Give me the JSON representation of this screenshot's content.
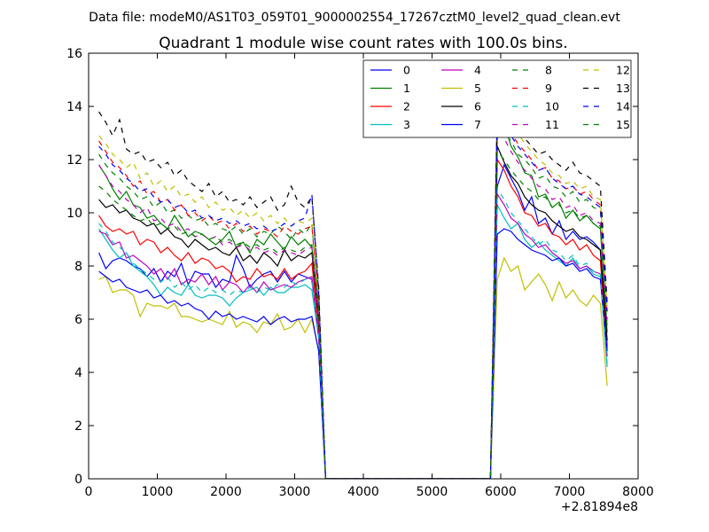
{
  "figure": {
    "suptitle": "Data file: modeM0/AS1T03_059T01_9000002554_17267cztM0_level2_quad_clean.evt"
  },
  "chart_data": {
    "type": "line",
    "title": "Quadrant 1 module wise count rates with 100.0s bins.",
    "xlabel": "",
    "ylabel": "",
    "x_offset_label": "+2.81894e8",
    "xlim": [
      0,
      8000
    ],
    "ylim": [
      0,
      16
    ],
    "xticks": [
      0,
      1000,
      2000,
      3000,
      4000,
      5000,
      6000,
      7000,
      8000
    ],
    "yticks": [
      0,
      2,
      4,
      6,
      8,
      10,
      12,
      14,
      16
    ],
    "legend_position": "top-right",
    "legend_columns": 4,
    "gap_x_points": [
      3450,
      3550,
      3650,
      3750,
      3850,
      3950,
      4050,
      4150,
      4250,
      4350,
      4450,
      4550,
      4650,
      4750,
      4850,
      4950,
      5050,
      5150,
      5250,
      5350,
      5450,
      5550,
      5650,
      5750,
      5850
    ],
    "gap_value": 0,
    "seg1_x": [
      150,
      250,
      350,
      450,
      550,
      650,
      750,
      850,
      950,
      1050,
      1150,
      1250,
      1350,
      1450,
      1550,
      1650,
      1750,
      1850,
      1950,
      2050,
      2150,
      2250,
      2350,
      2450,
      2550,
      2650,
      2750,
      2850,
      2950,
      3050,
      3150,
      3250,
      3350
    ],
    "seg2_x": [
      5950,
      6050,
      6150,
      6250,
      6350,
      6450,
      6550,
      6650,
      6750,
      6850,
      6950,
      7050,
      7150,
      7250,
      7350,
      7450,
      7550
    ],
    "series": [
      {
        "name": "0",
        "color": "#0000ff",
        "dash": "solid",
        "seg1": [
          8.5,
          7.9,
          8.2,
          8.3,
          8.2,
          8.0,
          7.9,
          7.6,
          7.9,
          7.4,
          7.8,
          7.6,
          8.1,
          7.3,
          7.8,
          7.7,
          7.7,
          7.2,
          7.5,
          7.4,
          8.4,
          7.9,
          7.2,
          7.5,
          7.7,
          7.8,
          7.4,
          7.8,
          7.4,
          7.7,
          7.6,
          7.5,
          5.4
        ],
        "seg2": [
          11.0,
          11.8,
          11.3,
          10.8,
          10.1,
          10.6,
          9.6,
          9.8,
          9.2,
          9.7,
          9.0,
          9.3,
          9.0,
          9.1,
          8.9,
          8.6,
          5.0
        ]
      },
      {
        "name": "1",
        "color": "#008000",
        "dash": "solid",
        "seg1": [
          11.8,
          11.4,
          10.9,
          10.5,
          10.8,
          10.3,
          10.2,
          9.8,
          9.9,
          9.6,
          9.4,
          9.9,
          9.5,
          9.1,
          9.3,
          9.2,
          9.0,
          8.8,
          9.0,
          9.3,
          8.7,
          8.9,
          8.5,
          9.0,
          8.8,
          9.2,
          8.9,
          8.6,
          9.1,
          8.8,
          9.0,
          8.7,
          6.2
        ],
        "seg2": [
          12.8,
          13.4,
          12.5,
          12.1,
          11.5,
          11.4,
          10.6,
          10.7,
          10.2,
          10.4,
          9.8,
          10.1,
          9.7,
          9.9,
          9.6,
          9.4,
          5.5
        ]
      },
      {
        "name": "2",
        "color": "#ff0000",
        "dash": "solid",
        "seg1": [
          9.9,
          9.5,
          9.3,
          9.4,
          9.2,
          9.3,
          8.8,
          9.0,
          8.9,
          8.5,
          8.7,
          8.4,
          8.2,
          8.5,
          8.1,
          8.3,
          8.2,
          7.9,
          8.0,
          7.8,
          7.4,
          7.6,
          7.5,
          7.9,
          7.6,
          7.7,
          7.5,
          7.9,
          7.5,
          7.7,
          7.8,
          8.1,
          5.6
        ],
        "seg2": [
          12.0,
          11.6,
          11.0,
          10.6,
          10.0,
          9.9,
          9.5,
          9.6,
          9.2,
          9.1,
          8.8,
          9.0,
          8.6,
          8.8,
          8.4,
          8.2,
          4.9
        ]
      },
      {
        "name": "3",
        "color": "#00bfbf",
        "dash": "solid",
        "seg1": [
          9.4,
          9.0,
          8.6,
          8.3,
          8.5,
          8.0,
          7.8,
          7.6,
          7.3,
          6.9,
          7.2,
          7.0,
          6.9,
          7.3,
          6.9,
          6.8,
          6.9,
          6.9,
          6.8,
          6.5,
          6.8,
          7.0,
          7.1,
          7.2,
          6.9,
          7.2,
          7.0,
          7.0,
          7.2,
          7.2,
          7.3,
          7.1,
          5.3
        ],
        "seg2": [
          10.3,
          9.8,
          9.4,
          9.6,
          9.0,
          8.7,
          8.9,
          8.6,
          8.4,
          8.2,
          8.0,
          8.3,
          7.9,
          8.0,
          7.7,
          7.6,
          4.2
        ]
      },
      {
        "name": "4",
        "color": "#bf00bf",
        "dash": "solid",
        "seg1": [
          9.3,
          9.2,
          8.8,
          8.9,
          8.3,
          8.4,
          8.2,
          8.0,
          7.7,
          7.9,
          7.5,
          7.9,
          7.3,
          7.5,
          7.4,
          7.7,
          7.3,
          7.6,
          7.1,
          7.4,
          7.3,
          7.0,
          7.3,
          7.0,
          7.4,
          7.1,
          7.2,
          7.3,
          7.2,
          7.4,
          7.5,
          7.6,
          5.3
        ],
        "seg2": [
          10.7,
          10.3,
          9.8,
          9.6,
          9.2,
          9.0,
          8.7,
          8.8,
          8.5,
          8.3,
          8.1,
          8.2,
          7.9,
          8.0,
          7.8,
          7.7,
          4.6
        ]
      },
      {
        "name": "5",
        "color": "#bfbf00",
        "dash": "solid",
        "seg1": [
          7.5,
          7.6,
          7.0,
          7.1,
          7.1,
          6.9,
          6.1,
          6.6,
          6.5,
          6.5,
          6.4,
          6.6,
          6.1,
          6.1,
          6.0,
          5.9,
          6.0,
          5.9,
          5.8,
          6.3,
          5.7,
          5.9,
          5.8,
          5.5,
          5.9,
          5.8,
          6.2,
          5.6,
          5.7,
          6.0,
          5.5,
          6.0,
          4.8
        ],
        "seg2": [
          7.5,
          8.3,
          7.8,
          8.0,
          7.1,
          7.4,
          7.7,
          7.3,
          6.7,
          7.4,
          6.8,
          7.1,
          6.7,
          6.5,
          6.9,
          6.6,
          3.5
        ]
      },
      {
        "name": "6",
        "color": "#000000",
        "dash": "solid",
        "seg1": [
          10.5,
          10.2,
          10.3,
          10.0,
          10.1,
          9.8,
          9.7,
          9.5,
          9.6,
          9.2,
          9.4,
          9.1,
          9.0,
          8.7,
          9.0,
          8.8,
          8.6,
          8.7,
          8.5,
          8.4,
          8.7,
          8.2,
          8.4,
          8.1,
          8.5,
          8.3,
          8.0,
          8.6,
          8.2,
          8.4,
          8.3,
          8.5,
          6.0
        ],
        "seg2": [
          12.5,
          11.9,
          11.4,
          11.1,
          10.6,
          10.3,
          10.1,
          10.0,
          9.7,
          9.5,
          9.3,
          9.4,
          9.1,
          9.0,
          8.8,
          8.6,
          5.2
        ]
      },
      {
        "name": "7",
        "color": "#0000ff",
        "dash": "solid",
        "seg1": [
          7.8,
          7.6,
          7.4,
          7.5,
          7.2,
          7.1,
          7.0,
          7.1,
          6.8,
          6.9,
          6.6,
          6.7,
          6.5,
          6.6,
          6.4,
          6.3,
          6.0,
          6.3,
          6.1,
          6.2,
          6.0,
          6.1,
          6.0,
          5.9,
          6.1,
          5.8,
          6.0,
          6.1,
          5.9,
          6.0,
          6.0,
          6.1,
          4.8
        ],
        "seg2": [
          9.2,
          9.4,
          9.3,
          9.0,
          8.8,
          8.6,
          8.5,
          8.4,
          8.2,
          8.3,
          8.0,
          8.1,
          7.8,
          7.9,
          7.6,
          7.5,
          4.8
        ]
      },
      {
        "name": "8",
        "color": "#008000",
        "dash": "dashed",
        "seg1": [
          12.2,
          11.8,
          11.5,
          11.3,
          11.0,
          10.8,
          10.5,
          10.6,
          10.2,
          10.4,
          10.0,
          10.1,
          9.8,
          9.9,
          9.7,
          9.8,
          9.5,
          9.6,
          9.4,
          9.3,
          9.5,
          9.2,
          9.4,
          9.1,
          9.3,
          9.2,
          9.5,
          9.3,
          9.0,
          9.4,
          9.2,
          9.6,
          6.5
        ],
        "seg2": [
          13.5,
          13.0,
          12.7,
          12.2,
          12.0,
          11.7,
          11.3,
          11.4,
          11.0,
          10.9,
          10.6,
          10.8,
          10.4,
          10.5,
          10.2,
          10.1,
          6.0
        ]
      },
      {
        "name": "9",
        "color": "#ff0000",
        "dash": "dashed",
        "seg1": [
          12.7,
          12.3,
          11.9,
          11.7,
          11.4,
          11.0,
          11.2,
          10.7,
          10.8,
          10.4,
          10.5,
          10.1,
          10.3,
          9.9,
          10.0,
          9.7,
          9.9,
          9.6,
          9.7,
          9.4,
          9.6,
          9.3,
          9.5,
          9.2,
          9.4,
          9.3,
          9.1,
          9.5,
          9.3,
          9.2,
          9.4,
          9.5,
          6.6
        ],
        "seg2": [
          13.9,
          13.5,
          13.0,
          12.6,
          12.3,
          12.0,
          11.6,
          11.7,
          11.3,
          11.2,
          10.9,
          11.0,
          10.7,
          10.8,
          10.5,
          10.3,
          6.2
        ]
      },
      {
        "name": "10",
        "color": "#00bfbf",
        "dash": "dashed",
        "seg1": [
          9.6,
          9.3,
          8.9,
          8.7,
          8.5,
          8.1,
          7.9,
          7.7,
          7.5,
          7.4,
          7.6,
          7.2,
          7.4,
          7.1,
          7.3,
          7.0,
          7.2,
          7.0,
          7.1,
          6.9,
          7.1,
          7.0,
          7.2,
          7.0,
          7.2,
          7.1,
          7.3,
          7.2,
          7.4,
          7.3,
          7.5,
          7.4,
          5.4
        ],
        "seg2": [
          10.9,
          10.5,
          10.0,
          9.7,
          9.4,
          9.1,
          8.8,
          9.0,
          8.6,
          8.5,
          8.2,
          8.4,
          8.0,
          8.1,
          7.8,
          7.7,
          4.3
        ]
      },
      {
        "name": "11",
        "color": "#bf00bf",
        "dash": "dashed",
        "seg1": [
          11.8,
          11.4,
          11.0,
          10.8,
          10.5,
          10.3,
          10.0,
          10.2,
          9.7,
          9.8,
          9.5,
          9.6,
          9.3,
          9.4,
          9.1,
          9.2,
          9.0,
          9.1,
          8.8,
          8.9,
          8.7,
          8.8,
          8.6,
          8.7,
          8.5,
          8.6,
          8.4,
          8.6,
          8.5,
          8.4,
          8.6,
          8.7,
          6.1
        ],
        "seg2": [
          13.2,
          12.8,
          12.3,
          11.9,
          11.6,
          11.3,
          11.0,
          10.9,
          10.5,
          10.6,
          10.2,
          10.3,
          9.9,
          10.0,
          9.7,
          9.6,
          5.8
        ]
      },
      {
        "name": "12",
        "color": "#bfbf00",
        "dash": "dashed",
        "seg1": [
          12.9,
          12.6,
          12.2,
          12.0,
          11.7,
          11.9,
          11.3,
          11.5,
          11.0,
          11.2,
          10.8,
          11.0,
          10.6,
          10.7,
          10.4,
          10.6,
          10.2,
          10.4,
          10.1,
          10.2,
          9.9,
          10.1,
          9.8,
          10.0,
          9.7,
          9.9,
          9.6,
          9.8,
          9.5,
          9.7,
          9.6,
          9.8,
          6.8
        ],
        "seg2": [
          14.4,
          13.9,
          13.4,
          13.0,
          12.6,
          12.3,
          12.0,
          11.8,
          11.5,
          11.4,
          11.1,
          11.2,
          10.9,
          11.0,
          10.6,
          10.5,
          6.4
        ]
      },
      {
        "name": "13",
        "color": "#000000",
        "dash": "dashed",
        "seg1": [
          13.8,
          13.4,
          12.9,
          13.5,
          12.4,
          12.2,
          12.3,
          11.9,
          12.0,
          11.7,
          11.9,
          11.4,
          11.6,
          11.2,
          11.0,
          10.8,
          11.1,
          10.6,
          10.8,
          10.4,
          10.5,
          10.3,
          10.6,
          10.2,
          10.4,
          10.6,
          10.1,
          10.3,
          11.0,
          10.4,
          10.2,
          10.6,
          7.2
        ],
        "seg2": [
          14.0,
          13.6,
          13.3,
          13.0,
          12.8,
          12.5,
          12.2,
          12.3,
          12.0,
          11.8,
          11.6,
          11.9,
          11.5,
          11.4,
          11.2,
          11.0,
          6.6
        ]
      },
      {
        "name": "14",
        "color": "#0000ff",
        "dash": "dashed",
        "seg1": [
          12.5,
          12.2,
          11.8,
          11.6,
          11.3,
          11.1,
          10.8,
          10.9,
          10.6,
          10.4,
          10.5,
          10.2,
          10.3,
          10.0,
          10.1,
          9.8,
          9.9,
          9.7,
          9.8,
          9.6,
          9.7,
          9.5,
          9.6,
          9.4,
          9.5,
          9.3,
          9.4,
          9.6,
          9.5,
          9.7,
          9.8,
          10.7,
          7.0
        ],
        "seg2": [
          13.7,
          13.3,
          12.9,
          12.5,
          12.2,
          11.9,
          11.6,
          11.7,
          11.3,
          11.1,
          10.9,
          11.0,
          10.7,
          10.6,
          10.4,
          10.2,
          6.3
        ]
      },
      {
        "name": "15",
        "color": "#008000",
        "dash": "dashed",
        "seg1": [
          11.0,
          10.8,
          10.5,
          10.3,
          10.1,
          9.9,
          9.7,
          9.8,
          9.5,
          9.6,
          9.4,
          9.5,
          9.2,
          9.3,
          9.1,
          9.2,
          9.0,
          9.1,
          8.9,
          9.0,
          8.8,
          8.9,
          8.7,
          8.8,
          8.6,
          8.7,
          8.5,
          8.7,
          8.6,
          8.5,
          8.7,
          8.8,
          6.3
        ],
        "seg2": [
          12.3,
          12.0,
          11.6,
          11.3,
          11.0,
          10.8,
          10.5,
          10.6,
          10.2,
          10.3,
          10.0,
          10.1,
          9.8,
          9.9,
          9.6,
          9.5,
          5.7
        ]
      }
    ]
  }
}
